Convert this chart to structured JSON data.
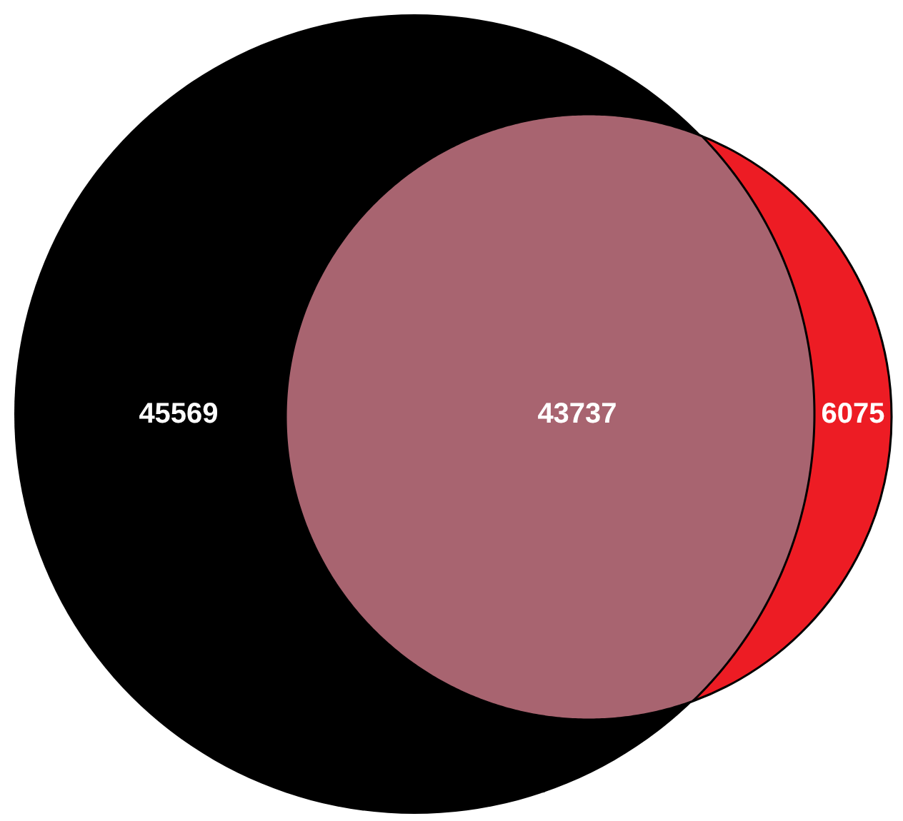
{
  "chart_data": {
    "type": "other",
    "categories": [
      null,
      null,
      null
    ],
    "values": [
      45569,
      43737,
      6075
    ],
    "colors": [
      "#000000",
      "#a86470",
      "#ed1c24"
    ],
    "data_labels": true
  }
}
